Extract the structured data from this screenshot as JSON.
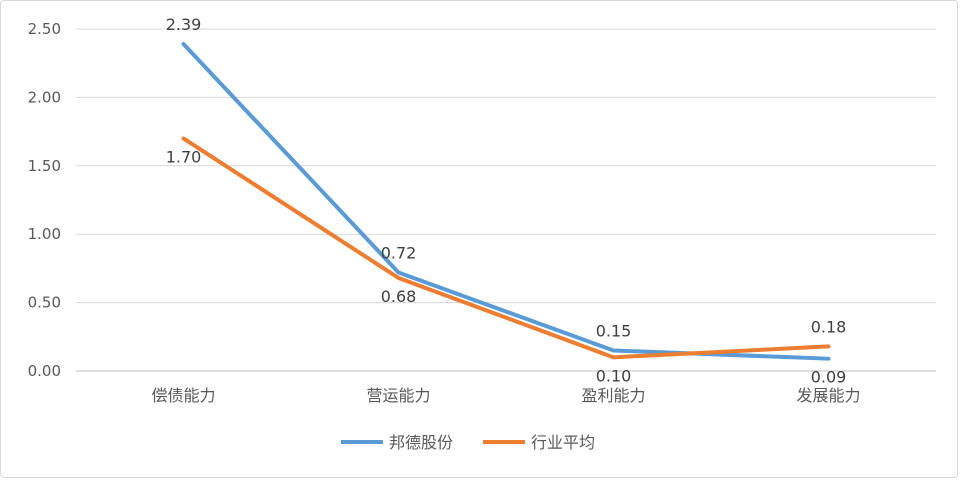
{
  "chart_data": {
    "type": "line",
    "categories": [
      "偿债能力",
      "营运能力",
      "盈利能力",
      "发展能力"
    ],
    "series": [
      {
        "name": "邦德股份",
        "values": [
          2.39,
          0.72,
          0.15,
          0.09
        ],
        "color": "#5b9bd5",
        "labels": [
          "2.39",
          "0.72",
          "0.15",
          "0.09"
        ]
      },
      {
        "name": "行业平均",
        "values": [
          1.7,
          0.68,
          0.1,
          0.18
        ],
        "color": "#ed7d31",
        "labels": [
          "1.70",
          "0.68",
          "0.10",
          "0.18"
        ]
      }
    ],
    "y_ticks": [
      "0.00",
      "0.50",
      "1.00",
      "1.50",
      "2.00",
      "2.50"
    ],
    "ylim": [
      0,
      2.5
    ],
    "grid": true,
    "legend_position": "bottom",
    "title": "",
    "xlabel": "",
    "ylabel": ""
  }
}
